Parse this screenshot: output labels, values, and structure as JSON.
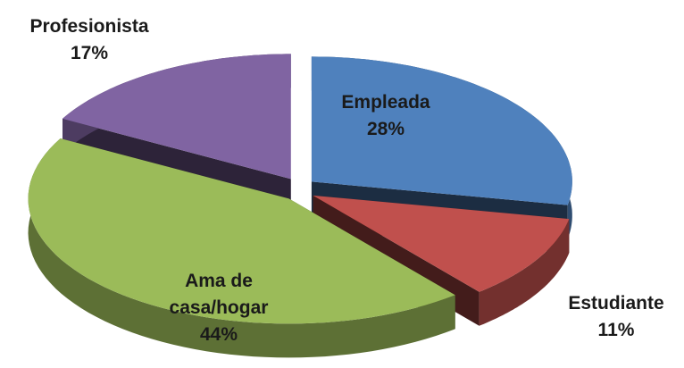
{
  "chart_data": {
    "type": "pie",
    "categories": [
      "Empleada",
      "Estudiante",
      "Ama de casa/hogar",
      "Profesionista"
    ],
    "values": [
      28,
      11,
      44,
      17
    ],
    "value_labels": [
      "28%",
      "11%",
      "44%",
      "17%"
    ],
    "colors": [
      "#4f81bd",
      "#c0504d",
      "#9bbb59",
      "#8064a2"
    ]
  }
}
